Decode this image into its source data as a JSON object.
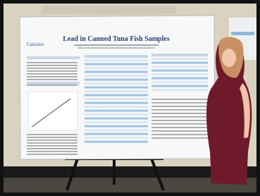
{
  "poster": {
    "title": "Lead in Canned Tuna Fish Samples",
    "logo": "Canisius"
  }
}
